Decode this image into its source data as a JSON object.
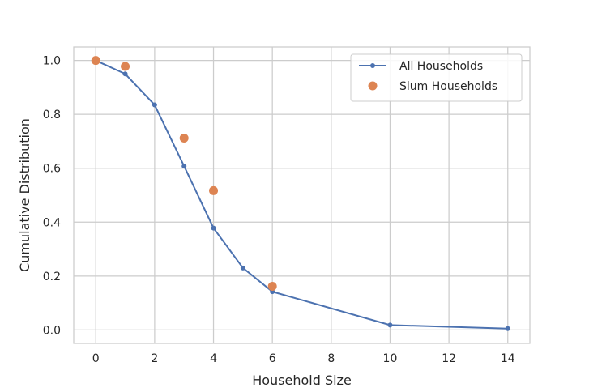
{
  "chart_data": {
    "type": "line",
    "title": "",
    "xlabel": "Household Size",
    "ylabel": "Cumulative Distribution",
    "xlim": [
      -0.75,
      14.75
    ],
    "ylim": [
      -0.05,
      1.05
    ],
    "xticks": [
      0,
      2,
      4,
      6,
      8,
      10,
      12,
      14
    ],
    "yticks": [
      0.0,
      0.2,
      0.4,
      0.6,
      0.8,
      1.0
    ],
    "ytick_labels": [
      "0.0",
      "0.2",
      "0.4",
      "0.6",
      "0.8",
      "1.0"
    ],
    "grid": true,
    "legend_position": "top-right",
    "series": [
      {
        "name": "All Households",
        "style": "line-marker",
        "color": "#4c72b0",
        "x": [
          0,
          1,
          2,
          3,
          4,
          5,
          6,
          10,
          14
        ],
        "y": [
          1.0,
          0.95,
          0.835,
          0.608,
          0.378,
          0.23,
          0.142,
          0.018,
          0.005
        ]
      },
      {
        "name": "Slum Households",
        "style": "scatter",
        "color": "#dd8452",
        "x": [
          0,
          1,
          3,
          4,
          6
        ],
        "y": [
          1.0,
          0.978,
          0.712,
          0.517,
          0.162
        ]
      }
    ]
  }
}
